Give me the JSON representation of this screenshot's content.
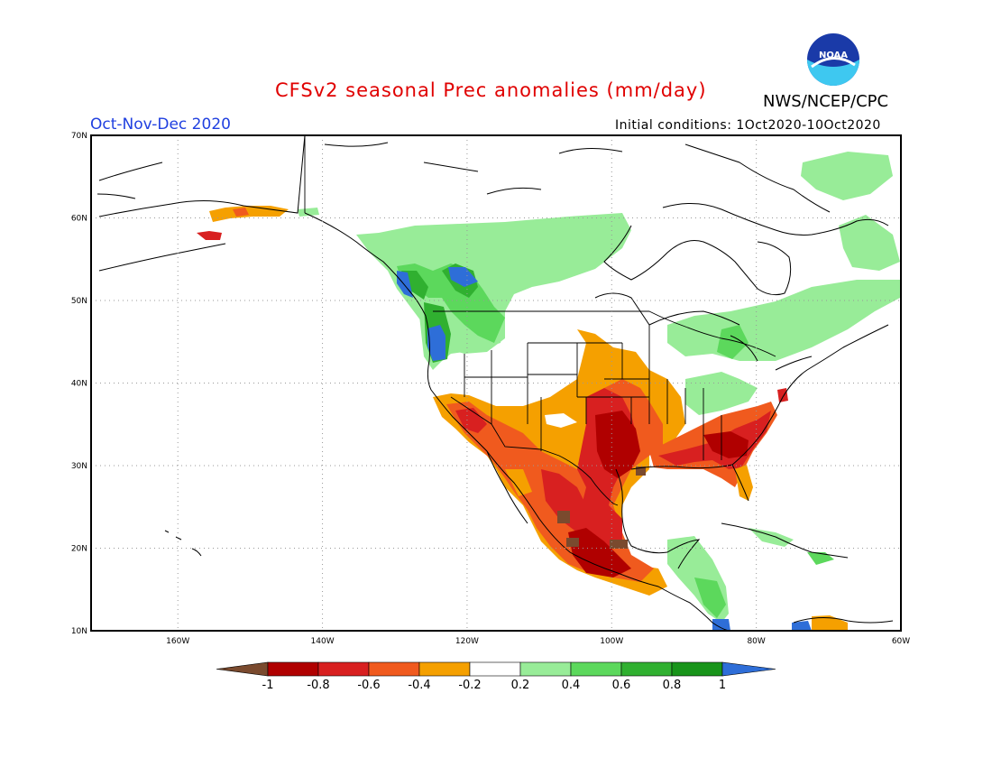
{
  "header": {
    "title": "CFSv2 seasonal Prec anomalies (mm/day)",
    "agency": "NWS/NCEP/CPC",
    "logo_text": "NOAA",
    "season": "Oct-Nov-Dec 2020",
    "initial_conditions": "Initial conditions: 1Oct2020-10Oct2020"
  },
  "map": {
    "lon_labels": [
      "160W",
      "140W",
      "120W",
      "100W",
      "80W",
      "60W"
    ],
    "lat_labels": [
      "70N",
      "60N",
      "50N",
      "40N",
      "30N",
      "20N",
      "10N"
    ],
    "lon_range": [
      -172,
      -60
    ],
    "lat_range": [
      10,
      70
    ]
  },
  "colorbar": {
    "labels": [
      "-1",
      "-0.8",
      "-0.6",
      "-0.4",
      "-0.2",
      "0.2",
      "0.4",
      "0.6",
      "0.8",
      "1"
    ],
    "colors": {
      "below_-1": "#7a4a2e",
      "-1_-0.8": "#b00000",
      "-0.8_-0.6": "#d82020",
      "-0.6_-0.4": "#f05a1e",
      "-0.4_-0.2": "#f5a000",
      "-0.2_0.2": "#ffffff",
      "0.2_0.4": "#98ec98",
      "0.4_0.6": "#5cd85c",
      "0.6_0.8": "#30b030",
      "0.8_1": "#18941a",
      "above_1": "#2e6ed8"
    }
  }
}
